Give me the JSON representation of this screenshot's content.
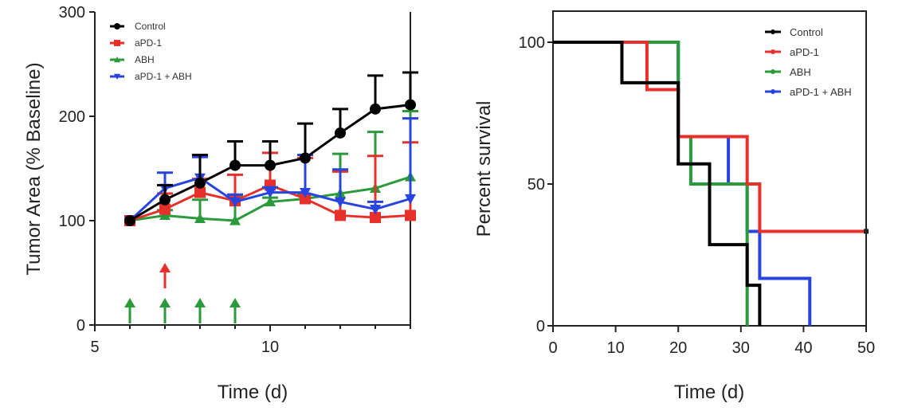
{
  "chart_data": [
    {
      "type": "line",
      "xlabel": "Time (d)",
      "ylabel": "Tumor Area (% Baseline)",
      "xlim": [
        5,
        14
      ],
      "ylim": [
        0,
        300
      ],
      "xticks": [
        "5",
        "10"
      ],
      "yticks": [
        "0",
        "100",
        "200",
        "300"
      ],
      "legend_position": "top-left",
      "x": [
        6,
        7,
        8,
        9,
        10,
        11,
        12,
        13,
        14
      ],
      "series": [
        {
          "name": "Control",
          "color": "#000000",
          "marker": "circle",
          "values": [
            100,
            120,
            136,
            153,
            153,
            160,
            184,
            207,
            211
          ],
          "error_upper": [
            100,
            134,
            163,
            176,
            176,
            193,
            207,
            239,
            242
          ]
        },
        {
          "name": "aPD-1",
          "color": "#e8302a",
          "marker": "square",
          "values": [
            100,
            111,
            127,
            119,
            134,
            121,
            105,
            103,
            105
          ],
          "error_upper": [
            100,
            126,
            140,
            144,
            165,
            160,
            147,
            162,
            175
          ]
        },
        {
          "name": "ABH",
          "color": "#2a9a3a",
          "marker": "triangle",
          "values": [
            100,
            105,
            102,
            100,
            118,
            121,
            126,
            131,
            142
          ],
          "error_upper": [
            100,
            110,
            120,
            124,
            122,
            125,
            164,
            185,
            205
          ]
        },
        {
          "name": "aPD-1 + ABH",
          "color": "#2844e0",
          "marker": "inverted-triangle",
          "values": [
            100,
            131,
            141,
            118,
            127,
            127,
            118,
            111,
            121
          ],
          "error_upper": [
            100,
            146,
            161,
            125,
            132,
            163,
            149,
            118,
            198
          ]
        }
      ],
      "annotations": {
        "treatment_arrows": [
          {
            "x": 6,
            "color": "#2a9a3a"
          },
          {
            "x": 7,
            "color": "#2a9a3a"
          },
          {
            "x": 8,
            "color": "#2a9a3a"
          },
          {
            "x": 9,
            "color": "#2a9a3a"
          },
          {
            "x": 7,
            "color": "#e8302a",
            "raised": true
          }
        ]
      }
    },
    {
      "type": "line",
      "step": true,
      "xlabel": "Time (d)",
      "ylabel": "Percent survival",
      "xlim": [
        0,
        50
      ],
      "ylim": [
        0,
        100
      ],
      "xticks": [
        "0",
        "10",
        "20",
        "30",
        "40",
        "50"
      ],
      "yticks": [
        "0",
        "50",
        "100"
      ],
      "legend_position": "top-right",
      "series": [
        {
          "name": "Control",
          "color": "#000000",
          "points": [
            [
              0,
              100
            ],
            [
              11,
              85.7
            ],
            [
              20,
              57.1
            ],
            [
              25,
              28.6
            ],
            [
              31,
              14.3
            ],
            [
              33,
              0
            ]
          ]
        },
        {
          "name": "aPD-1",
          "color": "#e8302a",
          "points": [
            [
              0,
              100
            ],
            [
              15,
              83.3
            ],
            [
              20,
              66.7
            ],
            [
              31,
              50
            ],
            [
              33,
              33.3
            ],
            [
              50,
              33.3
            ]
          ]
        },
        {
          "name": "ABH",
          "color": "#2a9a3a",
          "points": [
            [
              0,
              100
            ],
            [
              20,
              66.7
            ],
            [
              22,
              50
            ],
            [
              31,
              0
            ]
          ]
        },
        {
          "name": "aPD-1 + ABH",
          "color": "#2844e0",
          "points": [
            [
              0,
              100
            ],
            [
              20,
              66.7
            ],
            [
              28,
              50
            ],
            [
              31,
              33.3
            ],
            [
              33,
              16.7
            ],
            [
              41,
              0
            ]
          ]
        }
      ]
    }
  ]
}
